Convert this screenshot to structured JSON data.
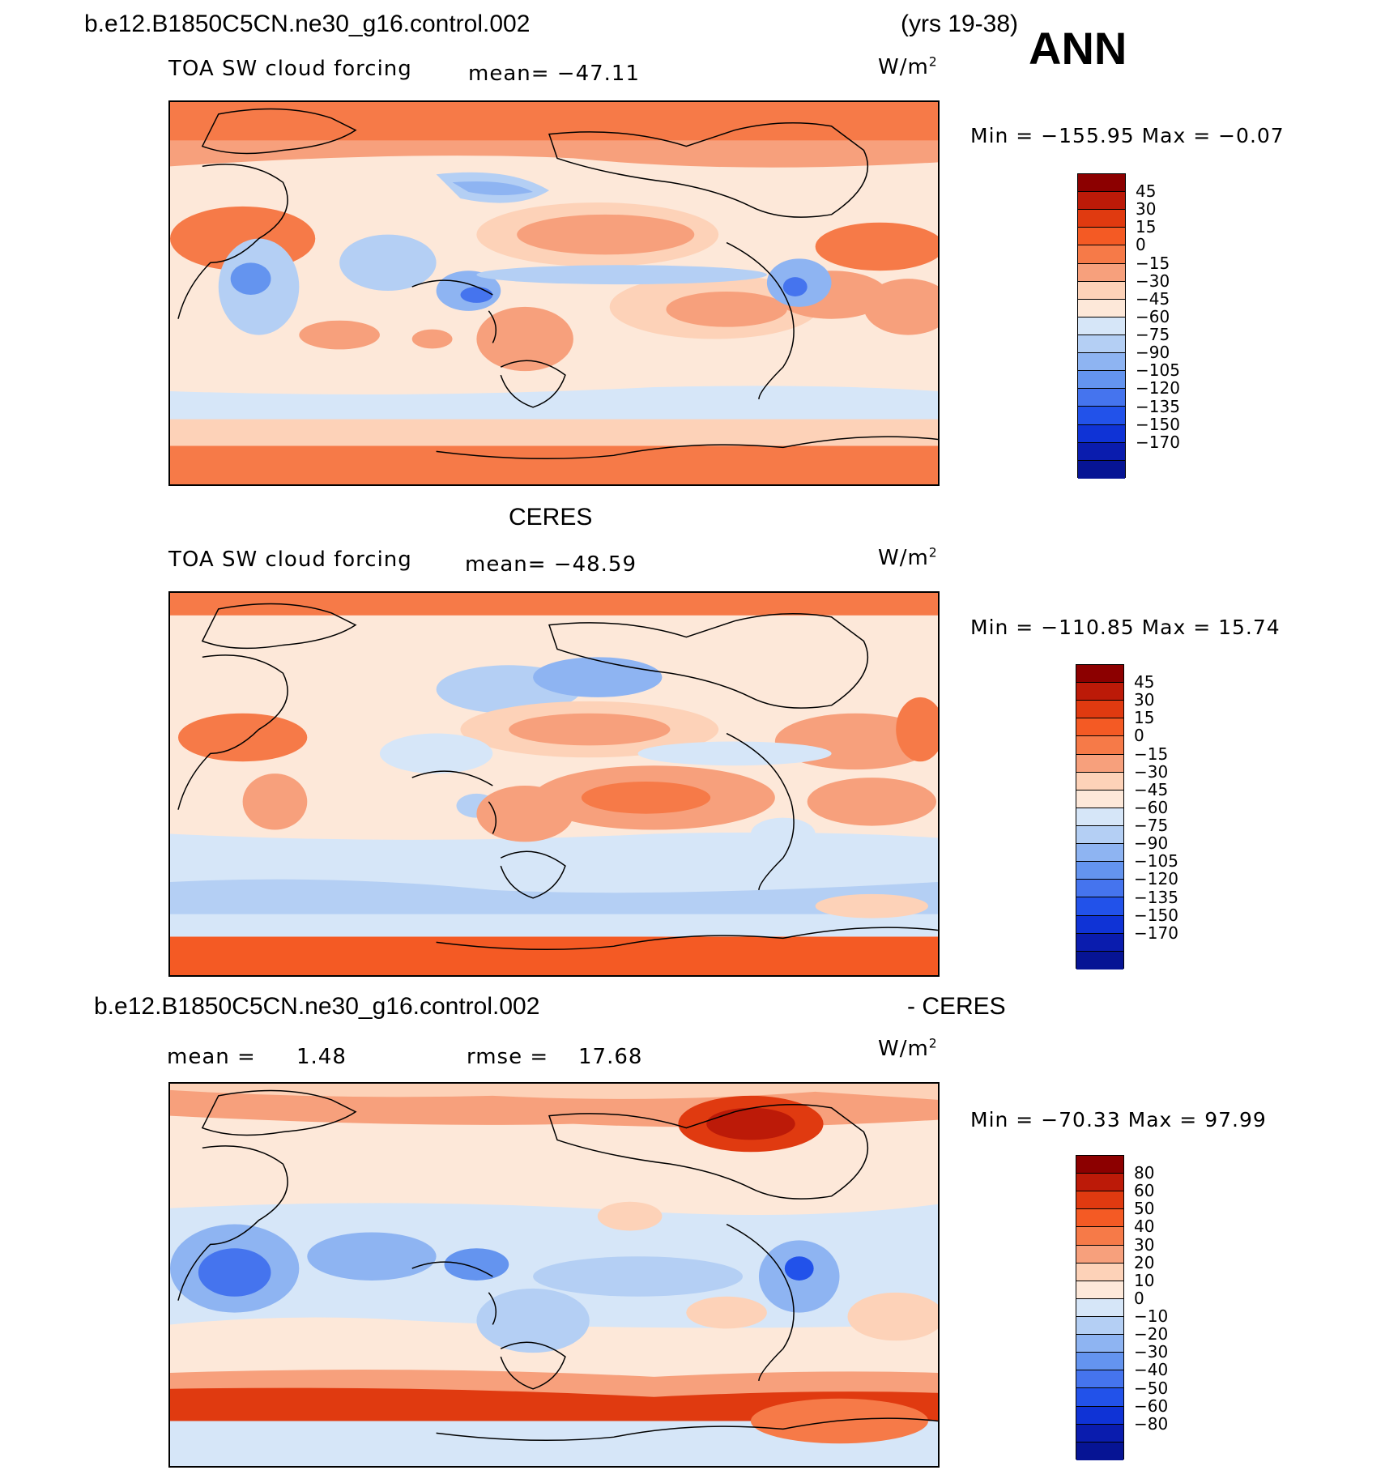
{
  "header": {
    "case_name": "b.e12.B1850C5CN.ne30_g16.control.002",
    "years": "(yrs 19-38)",
    "season": "ANN"
  },
  "panels": [
    {
      "id": "model",
      "variable": "TOA SW cloud forcing",
      "stat": "mean=  −47.11",
      "units_base": "W/m",
      "units_exp": "2",
      "minmax": "Min  =  −155.95  Max  =    −0.07",
      "colorbar": {
        "colors": [
          "#8c0000",
          "#bc1a08",
          "#e03a10",
          "#f45a24",
          "#f67a48",
          "#f7a07c",
          "#fdd2b8",
          "#fde8d9",
          "#d6e6f8",
          "#b4cff4",
          "#8eb4f2",
          "#6494ef",
          "#4574ee",
          "#2252ea",
          "#0f33d6",
          "#0a1cae",
          "#061494"
        ],
        "labels": [
          "45",
          "30",
          "15",
          "0",
          "−15",
          "−30",
          "−45",
          "−60",
          "−75",
          "−90",
          "−105",
          "−120",
          "−135",
          "−150",
          "−170"
        ]
      }
    },
    {
      "id": "obs",
      "title": "CERES",
      "variable": "TOA SW cloud forcing",
      "stat": "mean=  −48.59",
      "units_base": "W/m",
      "units_exp": "2",
      "minmax": "Min  =  −110.85  Max  =    15.74",
      "colorbar": {
        "colors": [
          "#8c0000",
          "#bc1a08",
          "#e03a10",
          "#f45a24",
          "#f67a48",
          "#f7a07c",
          "#fdd2b8",
          "#fde8d9",
          "#d6e6f8",
          "#b4cff4",
          "#8eb4f2",
          "#6494ef",
          "#4574ee",
          "#2252ea",
          "#0f33d6",
          "#0a1cae",
          "#061494"
        ],
        "labels": [
          "45",
          "30",
          "15",
          "0",
          "−15",
          "−30",
          "−45",
          "−60",
          "−75",
          "−90",
          "−105",
          "−120",
          "−135",
          "−150",
          "−170"
        ]
      }
    },
    {
      "id": "diff",
      "title_left": "b.e12.B1850C5CN.ne30_g16.control.002",
      "title_right": "- CERES",
      "mean_label": "mean  =",
      "mean_value": "1.48",
      "rmse_label": "rmse  =",
      "rmse_value": "17.68",
      "units_base": "W/m",
      "units_exp": "2",
      "minmax": "Min  =  −70.33  Max  =    97.99",
      "colorbar": {
        "colors": [
          "#8c0000",
          "#bc1a08",
          "#e03a10",
          "#f45a24",
          "#f67a48",
          "#f7a07c",
          "#fdd2b8",
          "#fde8d9",
          "#d6e6f8",
          "#b4cff4",
          "#8eb4f2",
          "#6494ef",
          "#4574ee",
          "#2252ea",
          "#0f33d6",
          "#0a1cae",
          "#061494"
        ],
        "labels": [
          "80",
          "60",
          "50",
          "40",
          "30",
          "20",
          "10",
          "0",
          "−10",
          "−20",
          "−30",
          "−40",
          "−50",
          "−60",
          "−80"
        ]
      }
    }
  ],
  "chart_data": [
    {
      "type": "heatmap",
      "title": "TOA SW cloud forcing",
      "subtitle": "b.e12.B1850C5CN.ne30_g16.control.002 (yrs 19-38) ANN",
      "mean": -47.11,
      "min": -155.95,
      "max": -0.07,
      "units": "W/m2",
      "colorbar_levels": [
        45,
        30,
        15,
        0,
        -15,
        -30,
        -45,
        -60,
        -75,
        -90,
        -105,
        -120,
        -135,
        -150,
        -170
      ]
    },
    {
      "type": "heatmap",
      "title": "CERES",
      "subtitle": "TOA SW cloud forcing",
      "mean": -48.59,
      "min": -110.85,
      "max": 15.74,
      "units": "W/m2",
      "colorbar_levels": [
        45,
        30,
        15,
        0,
        -15,
        -30,
        -45,
        -60,
        -75,
        -90,
        -105,
        -120,
        -135,
        -150,
        -170
      ]
    },
    {
      "type": "heatmap",
      "title": "b.e12.B1850C5CN.ne30_g16.control.002 - CERES",
      "mean": 1.48,
      "rmse": 17.68,
      "min": -70.33,
      "max": 97.99,
      "units": "W/m2",
      "colorbar_levels": [
        80,
        60,
        50,
        40,
        30,
        20,
        10,
        0,
        -10,
        -20,
        -30,
        -40,
        -50,
        -60,
        -80
      ]
    }
  ]
}
